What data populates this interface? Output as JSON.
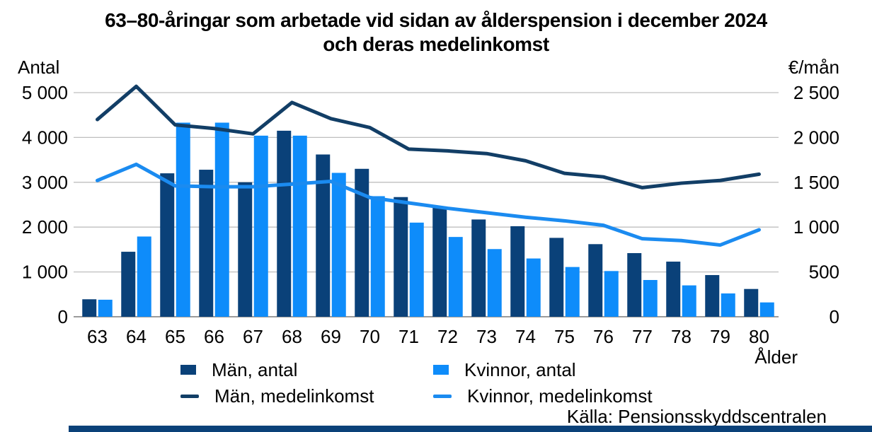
{
  "title": {
    "line1": "63–80-åringar som arbetade vid sidan av ålderspension i december 2024",
    "line2": "och deras medelinkomst"
  },
  "axes": {
    "left_header": "Antal",
    "right_header": "€/mån",
    "x_title": "Ålder"
  },
  "legend": {
    "items": [
      {
        "key": "men_bar",
        "label": "Män, antal"
      },
      {
        "key": "women_bar",
        "label": "Kvinnor, antal"
      },
      {
        "key": "men_line",
        "label": "Män, medelinkomst"
      },
      {
        "key": "women_line",
        "label": "Kvinnor, medelinkomst"
      }
    ]
  },
  "source": "Källa: Pensionsskyddscentralen",
  "colors": {
    "men_bar": "#0a4179",
    "women_bar": "#0e8cfa",
    "men_line": "#123e66",
    "women_line": "#1b8bf0",
    "grid": "#bfbfbf",
    "axis": "#9b9b9b",
    "text": "#000000",
    "footer_bar": "#0a4179"
  },
  "chart_data": {
    "type": "bar",
    "subtype": "grouped-bars-with-lines",
    "title": "63–80-åringar som arbetade vid sidan av ålderspension i december 2024 och deras medelinkomst",
    "categories": [
      63,
      64,
      65,
      66,
      67,
      68,
      69,
      70,
      71,
      72,
      73,
      74,
      75,
      76,
      77,
      78,
      79,
      80
    ],
    "x_label": "Ålder",
    "grid": true,
    "legend_position": "bottom",
    "left_axis": {
      "label": "Antal",
      "min": 0,
      "max": 5000,
      "ticks": [
        {
          "v": 0,
          "label": "0"
        },
        {
          "v": 1000,
          "label": "1 000"
        },
        {
          "v": 2000,
          "label": "2 000"
        },
        {
          "v": 3000,
          "label": "3 000"
        },
        {
          "v": 4000,
          "label": "4 000"
        },
        {
          "v": 5000,
          "label": "5 000"
        }
      ]
    },
    "right_axis": {
      "label": "€/mån",
      "min": 0,
      "max": 2500,
      "ticks": [
        {
          "v": 0,
          "label": "0"
        },
        {
          "v": 500,
          "label": "500"
        },
        {
          "v": 1000,
          "label": "1 000"
        },
        {
          "v": 1500,
          "label": "1 500"
        },
        {
          "v": 2000,
          "label": "2 000"
        },
        {
          "v": 2500,
          "label": "2 500"
        }
      ]
    },
    "series": [
      {
        "name": "Män, antal",
        "key": "men_bar",
        "type": "bar",
        "axis": "left",
        "values": [
          390,
          1450,
          3200,
          3280,
          3000,
          4150,
          3620,
          3300,
          2670,
          2450,
          2170,
          2020,
          1760,
          1620,
          1420,
          1230,
          930,
          620
        ]
      },
      {
        "name": "Kvinnor, antal",
        "key": "women_bar",
        "type": "bar",
        "axis": "left",
        "values": [
          380,
          1790,
          4330,
          4330,
          4040,
          4040,
          3210,
          2690,
          2100,
          1780,
          1510,
          1300,
          1110,
          1020,
          820,
          700,
          520,
          320
        ]
      },
      {
        "name": "Män, medelinkomst",
        "key": "men_line",
        "type": "line",
        "axis": "right",
        "values": [
          2200,
          2570,
          2140,
          2100,
          2040,
          2390,
          2210,
          2110,
          1870,
          1850,
          1820,
          1740,
          1600,
          1560,
          1440,
          1490,
          1520,
          1590
        ]
      },
      {
        "name": "Kvinnor, medelinkomst",
        "key": "women_line",
        "type": "line",
        "axis": "right",
        "values": [
          1520,
          1700,
          1460,
          1450,
          1450,
          1480,
          1510,
          1330,
          1270,
          1210,
          1160,
          1110,
          1070,
          1020,
          870,
          850,
          800,
          970
        ]
      }
    ]
  }
}
